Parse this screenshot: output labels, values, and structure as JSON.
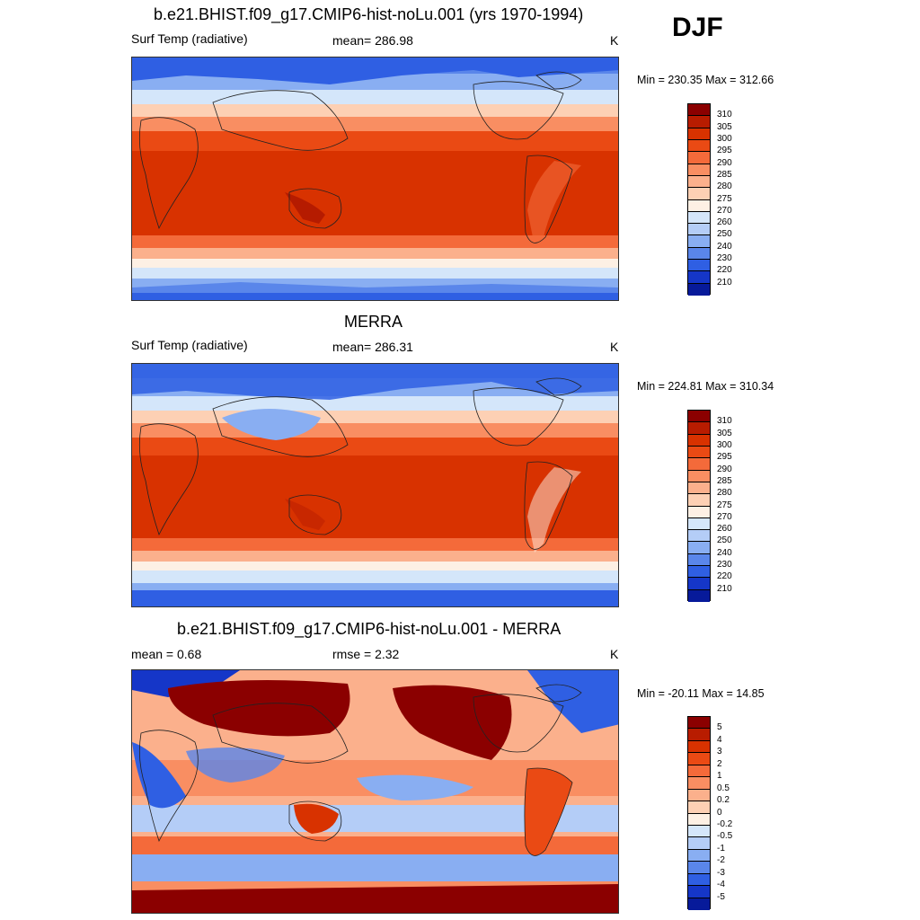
{
  "season": "DJF",
  "panels": [
    {
      "title": "b.e21.BHIST.f09_g17.CMIP6-hist-noLu.001 (yrs 1970-1994)",
      "left_label": "Surf Temp (radiative)",
      "center_label": "mean= 286.98",
      "units": "K",
      "minmax": "Min = 230.35 Max = 312.66",
      "colorbar": {
        "levels": [
          "310",
          "305",
          "300",
          "295",
          "290",
          "285",
          "280",
          "275",
          "270",
          "260",
          "250",
          "240",
          "230",
          "220",
          "210"
        ],
        "colors": [
          "#8b0000",
          "#b81c00",
          "#d83200",
          "#ea4a14",
          "#f46a3a",
          "#f98e62",
          "#fbb08c",
          "#fdd0b4",
          "#fdf0e4",
          "#d4e6fa",
          "#b4cdf7",
          "#89aef2",
          "#5a86ea",
          "#2f5fe3",
          "#1536c8",
          "#071a9a"
        ]
      }
    },
    {
      "title": "MERRA",
      "left_label": "Surf Temp (radiative)",
      "center_label": "mean= 286.31",
      "units": "K",
      "minmax": "Min = 224.81 Max = 310.34",
      "colorbar": {
        "levels": [
          "310",
          "305",
          "300",
          "295",
          "290",
          "285",
          "280",
          "275",
          "270",
          "260",
          "250",
          "240",
          "230",
          "220",
          "210"
        ],
        "colors": [
          "#8b0000",
          "#b81c00",
          "#d83200",
          "#ea4a14",
          "#f46a3a",
          "#f98e62",
          "#fbb08c",
          "#fdd0b4",
          "#fdf0e4",
          "#d4e6fa",
          "#b4cdf7",
          "#89aef2",
          "#5a86ea",
          "#2f5fe3",
          "#1536c8",
          "#071a9a"
        ]
      }
    },
    {
      "title": "b.e21.BHIST.f09_g17.CMIP6-hist-noLu.001 - MERRA",
      "left_label": "mean =   0.68",
      "center_label": "rmse =   2.32",
      "units": "K",
      "minmax": "Min = -20.11 Max =  14.85",
      "colorbar": {
        "levels": [
          "5",
          "4",
          "3",
          "2",
          "1",
          "0.5",
          "0.2",
          "0",
          "-0.2",
          "-0.5",
          "-1",
          "-2",
          "-3",
          "-4",
          "-5"
        ],
        "colors": [
          "#8b0000",
          "#b81c00",
          "#d83200",
          "#ea4a14",
          "#f46a3a",
          "#f98e62",
          "#fbb08c",
          "#fdd0b4",
          "#fdf0e4",
          "#d4e6fa",
          "#b4cdf7",
          "#89aef2",
          "#5a86ea",
          "#2f5fe3",
          "#1536c8",
          "#071a9a"
        ]
      }
    }
  ]
}
